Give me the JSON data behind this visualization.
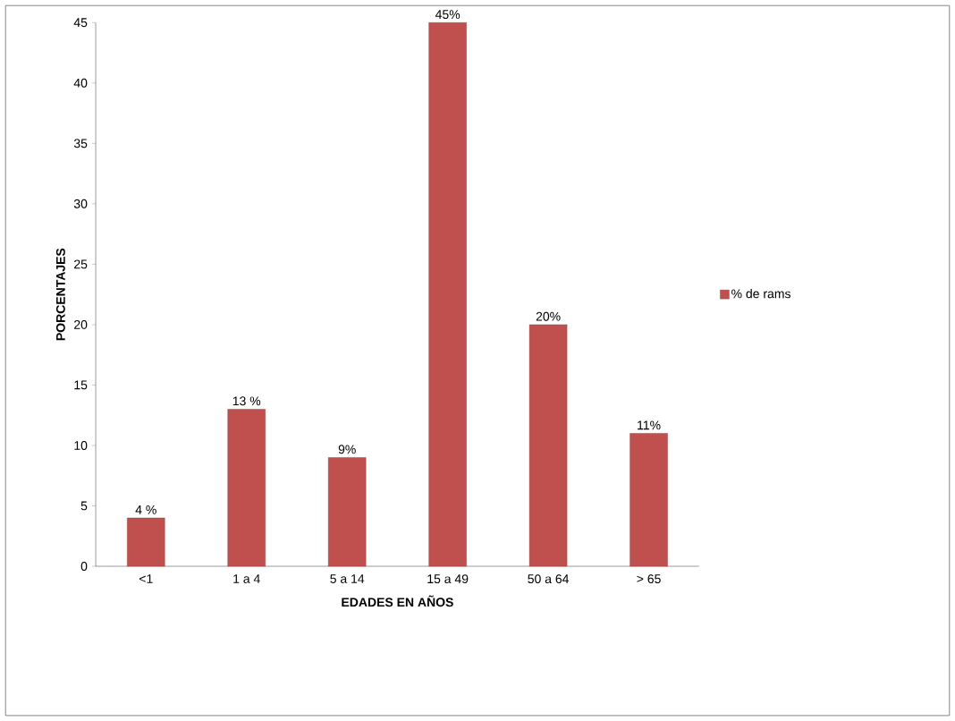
{
  "chart_data": {
    "type": "bar",
    "xlabel": "EDADES EN AÑOS",
    "ylabel": "PORCENTAJES",
    "categories": [
      "<1",
      "1 a 4",
      "5 a 14",
      "15 a 49",
      "50 a 64",
      "> 65"
    ],
    "series": [
      {
        "name": "% de rams",
        "color": "#c0504d",
        "values": [
          4,
          13,
          9,
          45,
          20,
          11
        ],
        "value_labels": [
          "4 %",
          "13 %",
          "9%",
          "45%",
          "20%",
          "11%"
        ]
      }
    ],
    "ylim": [
      0,
      45
    ],
    "yticks": [
      0,
      5,
      10,
      15,
      20,
      25,
      30,
      35,
      40,
      45
    ],
    "grid": false,
    "legend": "right"
  }
}
